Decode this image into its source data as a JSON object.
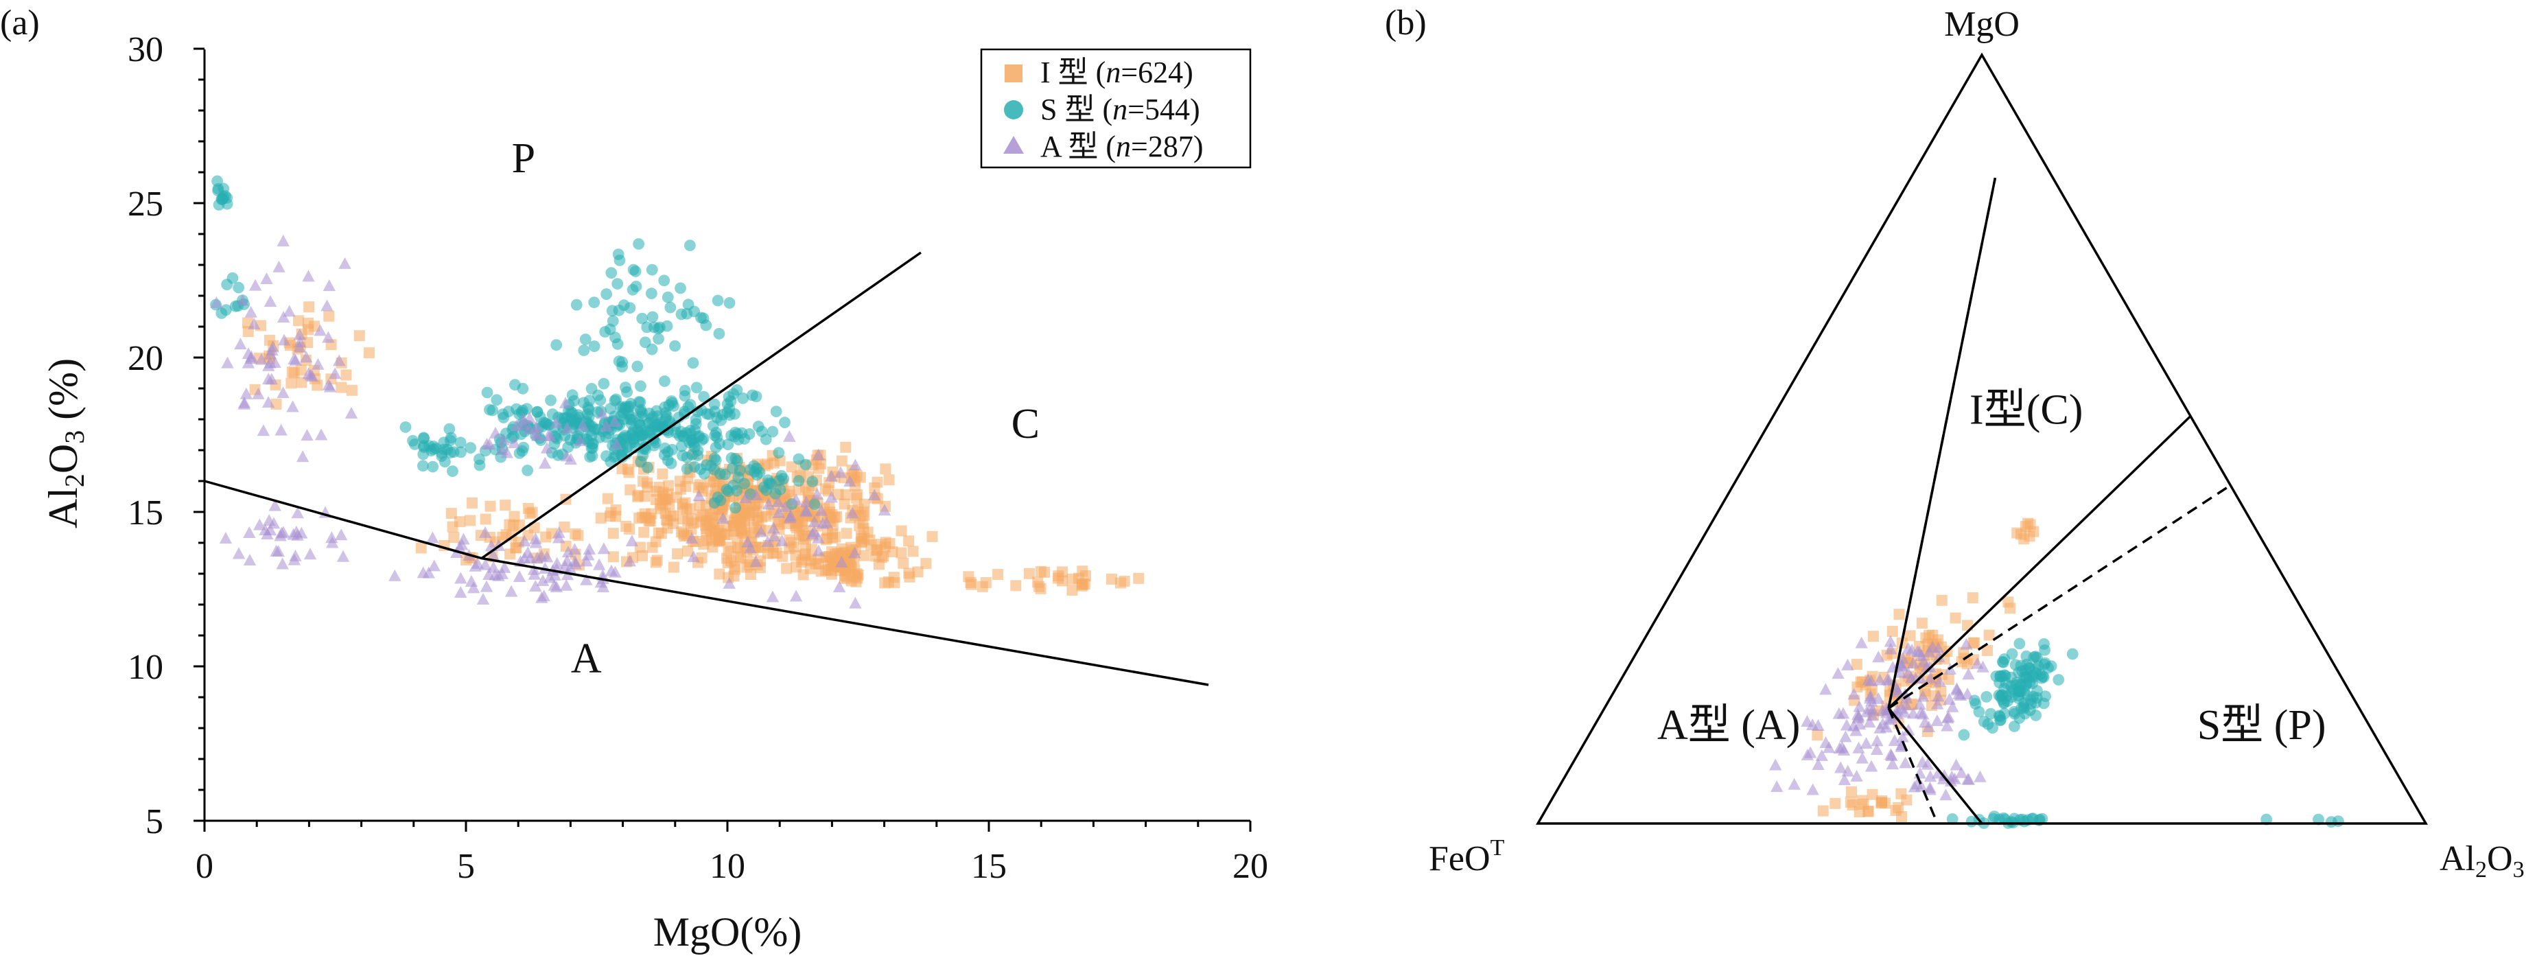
{
  "colors": {
    "i_type": "#f5a962",
    "s_type": "#27aeb3",
    "a_type": "#a88fd1",
    "line": "#000000"
  },
  "chart_data": [
    {
      "type": "scatter",
      "panel_label": "(a)",
      "xlabel": "MgO(%)",
      "ylabel": "Al2O3 (%)",
      "ylabel_parts": {
        "main": "Al",
        "sub1": "2",
        "mid": "O",
        "sub2": "3",
        "unit": " (%)"
      },
      "xlim": [
        0,
        20
      ],
      "ylim": [
        5,
        30
      ],
      "x_ticks": [
        "0",
        "5",
        "10",
        "15",
        "20"
      ],
      "y_ticks": [
        "5",
        "10",
        "15",
        "20",
        "25",
        "30"
      ],
      "legend": {
        "position": "top-right",
        "entries": [
          {
            "marker": "square",
            "prefix": "I 型 (",
            "n_sym": "n",
            "suffix": "=624)"
          },
          {
            "marker": "circle",
            "prefix": "S 型 (",
            "n_sym": "n",
            "suffix": "=544)"
          },
          {
            "marker": "triangle",
            "prefix": "A 型 (",
            "n_sym": "n",
            "suffix": "=287)"
          }
        ]
      },
      "zone_labels": [
        {
          "text": "P",
          "x": 6.1,
          "y": 26.0
        },
        {
          "text": "C",
          "x": 15.7,
          "y": 17.4
        },
        {
          "text": "A",
          "x": 7.3,
          "y": 9.8
        }
      ],
      "boundary_lines": [
        {
          "points": [
            [
              0,
              16.0
            ],
            [
              5.3,
              13.5
            ],
            [
              19.2,
              9.4
            ]
          ]
        },
        {
          "points": [
            [
              5.3,
              13.5
            ],
            [
              13.7,
              23.4
            ]
          ]
        }
      ],
      "series": [
        {
          "marker": "square",
          "clusters": [
            {
              "n": 420,
              "x": [
                7.5,
                13.2
              ],
              "y": [
                12.8,
                17.2
              ]
            },
            {
              "n": 90,
              "x": [
                11.0,
                14.0
              ],
              "y": [
                12.5,
                14.5
              ]
            },
            {
              "n": 30,
              "x": [
                14.0,
                18.0
              ],
              "y": [
                12.3,
                13.3
              ]
            },
            {
              "n": 40,
              "x": [
                0.6,
                3.2
              ],
              "y": [
                18.0,
                22.0
              ]
            },
            {
              "n": 45,
              "x": [
                4.0,
                7.5
              ],
              "y": [
                13.0,
                15.5
              ]
            }
          ]
        },
        {
          "marker": "circle",
          "clusters": [
            {
              "n": 340,
              "x": [
                5.0,
                11.2
              ],
              "y": [
                16.3,
                19.2
              ]
            },
            {
              "n": 12,
              "x": [
                0.2,
                0.5
              ],
              "y": [
                24.5,
                26.0
              ]
            },
            {
              "n": 10,
              "x": [
                0.2,
                0.8
              ],
              "y": [
                21.0,
                23.0
              ]
            },
            {
              "n": 60,
              "x": [
                6.5,
                10.2
              ],
              "y": [
                19.0,
                24.0
              ]
            },
            {
              "n": 30,
              "x": [
                3.6,
                5.2
              ],
              "y": [
                16.0,
                17.8
              ]
            },
            {
              "n": 40,
              "x": [
                9.0,
                12.0
              ],
              "y": [
                15.0,
                17.0
              ]
            }
          ]
        },
        {
          "marker": "triangle",
          "clusters": [
            {
              "n": 60,
              "x": [
                0.1,
                3.0
              ],
              "y": [
                16.5,
                24.0
              ]
            },
            {
              "n": 80,
              "x": [
                3.3,
                8.5
              ],
              "y": [
                12.0,
                14.5
              ]
            },
            {
              "n": 30,
              "x": [
                0.3,
                2.8
              ],
              "y": [
                13.0,
                15.5
              ]
            },
            {
              "n": 50,
              "x": [
                9.0,
                13.5
              ],
              "y": [
                11.8,
                17.5
              ]
            },
            {
              "n": 30,
              "x": [
                5.0,
                8.5
              ],
              "y": [
                16.3,
                18.7
              ]
            }
          ]
        }
      ]
    },
    {
      "type": "ternary",
      "panel_label": "(b)",
      "vertices": {
        "top": "MgO",
        "left": {
          "main": "FeO",
          "sup": "T"
        },
        "right": {
          "main": "Al",
          "sub1": "2",
          "mid": "O",
          "sub2": "3"
        }
      },
      "zone_labels": [
        {
          "text": "I型(C)",
          "mgo": 0.52,
          "al2o3": 0.29
        },
        {
          "text": "A型 (A)",
          "mgo": 0.11,
          "al2o3": 0.16
        },
        {
          "text": "S型 (P)",
          "mgo": 0.11,
          "al2o3": 0.76
        }
      ],
      "solid_lines": [
        {
          "points": [
            [
              0.15,
              0.32
            ],
            [
              0.84,
              0.095
            ]
          ]
        },
        {
          "points": [
            [
              0.15,
              0.32
            ],
            [
              0.53,
              0.47
            ]
          ]
        },
        {
          "points": [
            [
              0.15,
              0.32
            ],
            [
              0.0,
              0.5
            ]
          ]
        }
      ],
      "dashed_lines": [
        {
          "points": [
            [
              0.15,
              0.32
            ],
            [
              0.84,
              0.095
            ]
          ]
        },
        {
          "points": [
            [
              0.15,
              0.32
            ],
            [
              0.44,
              0.56
            ]
          ]
        },
        {
          "points": [
            [
              0.15,
              0.32
            ],
            [
              0.0,
              0.45
            ]
          ]
        }
      ],
      "series": [
        {
          "marker": "square",
          "clusters": [
            {
              "n": 90,
              "mgo": [
                0.1,
                0.3
              ],
              "al2o3": [
                0.25,
                0.4
              ]
            },
            {
              "n": 20,
              "mgo": [
                0.0,
                0.05
              ],
              "al2o3": [
                0.3,
                0.42
              ]
            },
            {
              "n": 8,
              "mgo": [
                0.36,
                0.4
              ],
              "al2o3": [
                0.34,
                0.37
              ]
            }
          ]
        },
        {
          "marker": "circle",
          "clusters": [
            {
              "n": 110,
              "mgo": [
                0.11,
                0.24
              ],
              "al2o3": [
                0.41,
                0.5
              ]
            },
            {
              "n": 22,
              "mgo": [
                0.0,
                0.01
              ],
              "al2o3": [
                0.44,
                0.58
              ]
            },
            {
              "n": 4,
              "mgo": [
                0.0,
                0.01
              ],
              "al2o3": [
                0.7,
                0.94
              ]
            }
          ]
        },
        {
          "marker": "triangle",
          "clusters": [
            {
              "n": 140,
              "mgo": [
                0.02,
                0.26
              ],
              "al2o3": [
                0.22,
                0.42
              ]
            },
            {
              "n": 20,
              "mgo": [
                0.03,
                0.09
              ],
              "al2o3": [
                0.38,
                0.48
              ]
            }
          ]
        }
      ]
    }
  ]
}
